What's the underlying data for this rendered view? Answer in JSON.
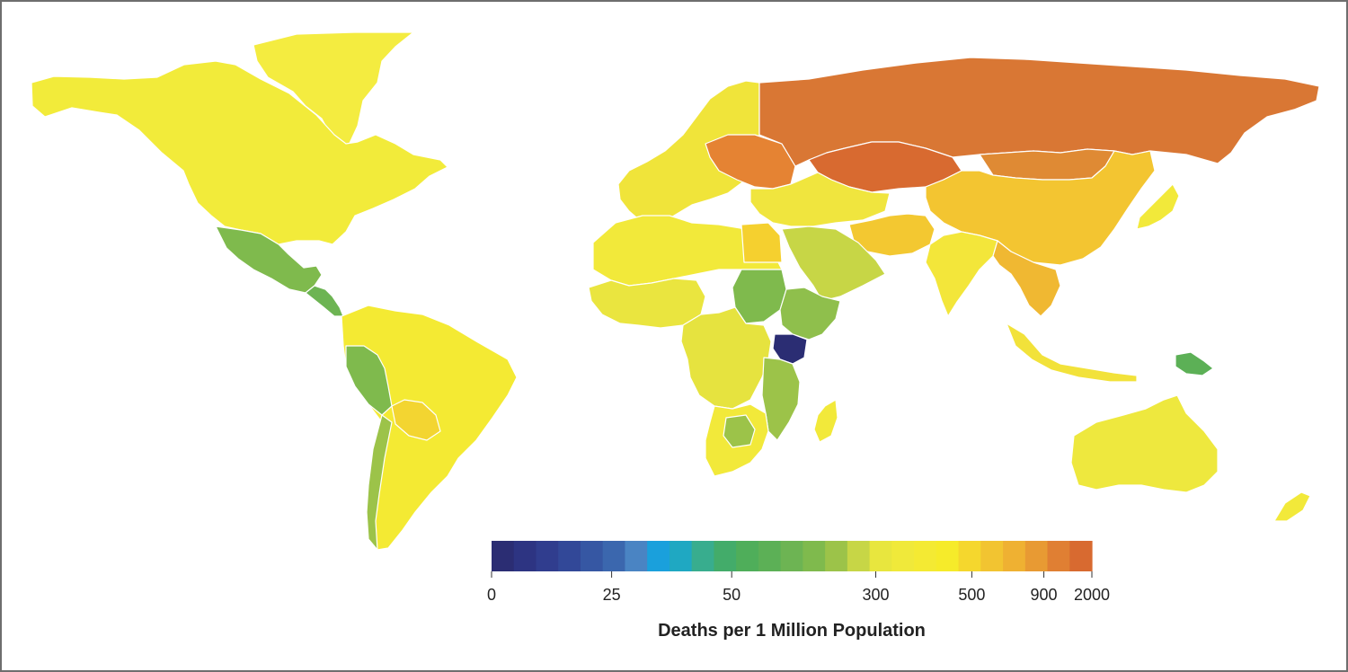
{
  "legend": {
    "title": "Deaths per 1 Million Population",
    "tick_labels": [
      "0",
      "25",
      "50",
      "300",
      "500",
      "900",
      "2000"
    ],
    "tick_positions": [
      0,
      5,
      10,
      16,
      20,
      23,
      25
    ],
    "colors": [
      "#2b2d73",
      "#2d3482",
      "#303d8e",
      "#324898",
      "#3657a3",
      "#3b67ae",
      "#4a84c3",
      "#1aa0dc",
      "#1fa8c2",
      "#38ad8e",
      "#43ac6a",
      "#4fae5a",
      "#5cb056",
      "#6db453",
      "#7fba4d",
      "#9cc349",
      "#c7d646",
      "#e8e63e",
      "#f0e93a",
      "#f4ea33",
      "#f6eb2a",
      "#f5d72d",
      "#f2c431",
      "#efb132",
      "#e89a33",
      "#e07f33",
      "#d86a30"
    ]
  },
  "map_colors": {
    "russia": "#d97734",
    "kazakhstan": "#d86a30",
    "mongolia": "#df8a34",
    "china": "#f3c531",
    "eastern_europe": "#e58333",
    "europe": "#f0e43a",
    "north_america": "#f2eb3a",
    "mexico": "#7fba4d",
    "central_america": "#6db453",
    "south_america": "#f4ea33",
    "peru": "#7fba4d",
    "bolivia": "#f3d531",
    "chile": "#9cc349",
    "africa_north": "#f2e93a",
    "egypt": "#f5d02f",
    "sudan": "#7fba4d",
    "ethiopia": "#8fbf4c",
    "kenya": "#2b2d73",
    "tanzania": "#9cc349",
    "west_africa": "#eae53f",
    "central_africa": "#e6e33f",
    "southern_africa": "#f2e93a",
    "botswana": "#9cc349",
    "madagascar": "#f2e93a",
    "arabia": "#c7d646",
    "iran": "#f3c831",
    "india": "#f3e63a",
    "southeast_asia": "#f0b832",
    "indonesia": "#f2e23a",
    "papua": "#5cb056",
    "japan": "#f2e93a",
    "australia": "#eee83e",
    "new_zealand": "#f2e93a",
    "greenland": "#f4ec40",
    "middle_east": "#f0e53e"
  }
}
